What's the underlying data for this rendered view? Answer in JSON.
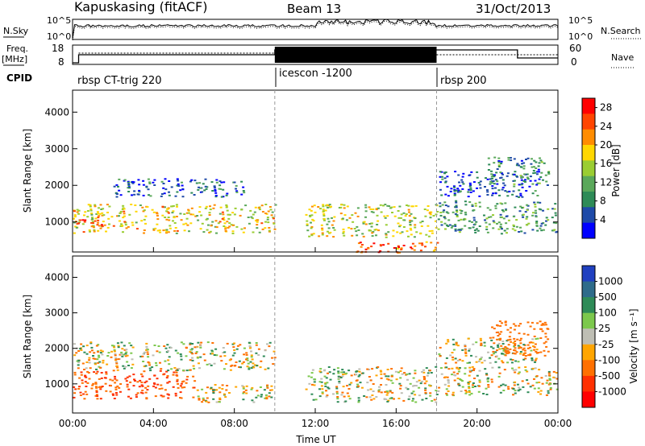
{
  "header": {
    "station": "Kapuskasing (fitACF)",
    "beam": "Beam 13",
    "date": "31/Oct/2013"
  },
  "noise_panel": {
    "left_label": "N.Sky",
    "right_label": "N.Search",
    "left_ticks": [
      "10^5",
      "10^0"
    ],
    "right_ticks": [
      "10^5",
      "10^0"
    ]
  },
  "freq_panel": {
    "left_label_1": "Freq.",
    "left_label_2": "[MHz]",
    "right_label": "Nave",
    "left_ticks": [
      "18",
      "8"
    ],
    "right_ticks": [
      "60",
      "0"
    ]
  },
  "cpid": {
    "label": "CPID",
    "programs": [
      {
        "name": "rbsp CT-trig 220",
        "start_hour": 0
      },
      {
        "name": "icescon -1200",
        "start_hour": 10
      },
      {
        "name": "rbsp 200",
        "start_hour": 18
      }
    ]
  },
  "colors": {
    "power_scale": [
      "#0000ff",
      "#1e4aa8",
      "#2e8b57",
      "#5aa85a",
      "#9acd32",
      "#ffd700",
      "#ff8c00",
      "#ff4500",
      "#ff0000"
    ],
    "velocity_scale": [
      "#2040c0",
      "#2e6b8a",
      "#2e8b57",
      "#7cc84c",
      "#bebeb4",
      "#ffa500",
      "#ff7000",
      "#ff3000",
      "#ff0000"
    ]
  },
  "chart_data": [
    {
      "type": "heatmap",
      "name": "power",
      "ylabel": "Slant Range [km]",
      "xlim": [
        0,
        24
      ],
      "ylim": [
        180,
        4600
      ],
      "x_ticks": [
        "00:00",
        "04:00",
        "08:00",
        "12:00",
        "16:00",
        "20:00",
        "00:00"
      ],
      "y_ticks": [
        1000,
        2000,
        3000,
        4000
      ],
      "colorbar": {
        "label": "Power [dB]",
        "ticks": [
          4,
          8,
          12,
          16,
          20,
          24,
          28
        ],
        "range": [
          0,
          30
        ]
      },
      "regions": [
        {
          "t0": 0.0,
          "t1": 10.0,
          "r0": 700,
          "r1": 1500,
          "value": 18
        },
        {
          "t0": 2.0,
          "t1": 8.5,
          "r0": 1700,
          "r1": 2200,
          "value": 6
        },
        {
          "t0": 0.0,
          "t1": 2.0,
          "r0": 900,
          "r1": 1100,
          "value": 26
        },
        {
          "t0": 11.5,
          "t1": 18.0,
          "r0": 600,
          "r1": 1500,
          "value": 16
        },
        {
          "t0": 14.0,
          "t1": 18.0,
          "r0": 180,
          "r1": 500,
          "value": 24
        },
        {
          "t0": 18.0,
          "t1": 24.0,
          "r0": 700,
          "r1": 1600,
          "value": 10
        },
        {
          "t0": 18.0,
          "t1": 23.0,
          "r0": 1700,
          "r1": 2400,
          "value": 5
        },
        {
          "t0": 20.5,
          "t1": 23.5,
          "r0": 2000,
          "r1": 2800,
          "value": 8
        }
      ]
    },
    {
      "type": "heatmap",
      "name": "velocity",
      "xlabel": "Time UT",
      "ylabel": "Slant Range [km]",
      "xlim": [
        0,
        24
      ],
      "ylim": [
        180,
        4600
      ],
      "x_ticks": [
        "00:00",
        "04:00",
        "08:00",
        "12:00",
        "16:00",
        "20:00",
        "00:00"
      ],
      "y_ticks": [
        1000,
        2000,
        3000,
        4000
      ],
      "colorbar": {
        "label": "Velocity [m s⁻¹]",
        "ticks": [
          1000,
          500,
          100,
          25,
          -25,
          -100,
          -500,
          -1000
        ]
      },
      "regions": [
        {
          "t0": 0.0,
          "t1": 6.0,
          "r0": 600,
          "r1": 1400,
          "value": -500
        },
        {
          "t0": 0.0,
          "t1": 10.0,
          "r0": 1400,
          "r1": 2200,
          "value": 0
        },
        {
          "t0": 6.0,
          "t1": 10.0,
          "r0": 500,
          "r1": 1000,
          "value": 0
        },
        {
          "t0": 11.5,
          "t1": 18.0,
          "r0": 500,
          "r1": 1500,
          "value": 0
        },
        {
          "t0": 18.0,
          "t1": 24.0,
          "r0": 700,
          "r1": 1500,
          "value": 0
        },
        {
          "t0": 18.0,
          "t1": 23.0,
          "r0": 1600,
          "r1": 2300,
          "value": 0
        },
        {
          "t0": 20.5,
          "t1": 23.5,
          "r0": 1800,
          "r1": 2800,
          "value": -300
        }
      ]
    }
  ]
}
